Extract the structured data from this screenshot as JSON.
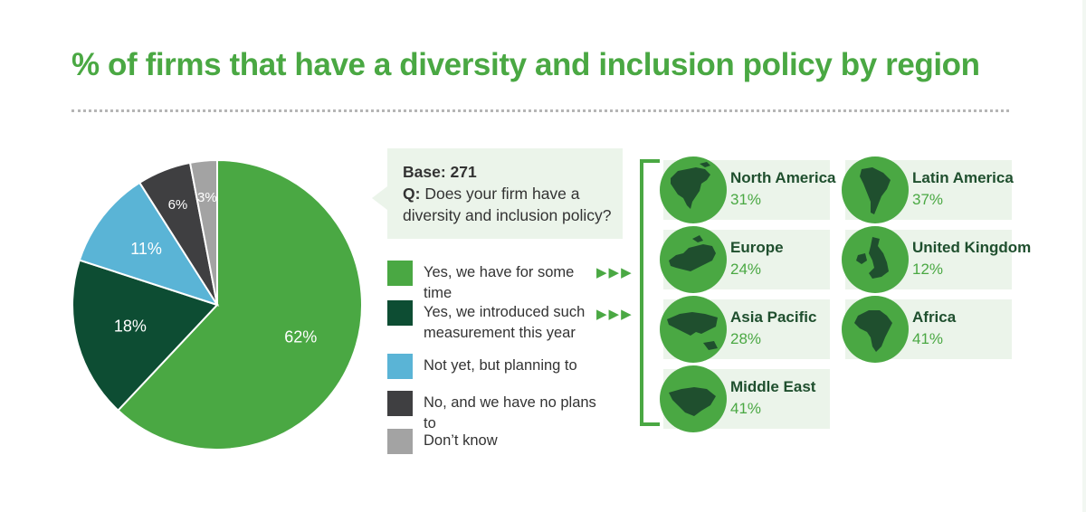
{
  "title": "% of firms that have a diversity and inclusion policy by region",
  "question": {
    "base": "Base: 271",
    "q_prefix": "Q:",
    "q_line1": "Does your firm have a",
    "q_line2": "diversity and inclusion policy?"
  },
  "legend": [
    {
      "label": "Yes, we have for some time",
      "color": "#4aa843"
    },
    {
      "label": "Yes, we introduced such measurement this year",
      "color": "#0d4d33"
    },
    {
      "label": "Not yet, but planning to",
      "color": "#5ab4d6"
    },
    {
      "label": "No, and we have no plans to",
      "color": "#3f3f41"
    },
    {
      "label": "Don’t know",
      "color": "#a3a3a3"
    }
  ],
  "arrow_glyph": "▶▶▶",
  "chart_data": {
    "type": "pie",
    "slices": [
      {
        "name": "Yes, we have for some time",
        "value": 62,
        "label": "62%",
        "color": "#4aa843"
      },
      {
        "name": "Yes, we introduced such measurement this year",
        "value": 18,
        "label": "18%",
        "color": "#0d4d33"
      },
      {
        "name": "Not yet, but planning to",
        "value": 11,
        "label": "11%",
        "color": "#5ab4d6"
      },
      {
        "name": "No, and we have no plans to",
        "value": 6,
        "label": "6%",
        "color": "#3f3f41"
      },
      {
        "name": "Don’t know",
        "value": 3,
        "label": "3%",
        "color": "#a3a3a3"
      }
    ]
  },
  "regions": [
    {
      "name": "North America",
      "value": "31%",
      "icon": "north-america-map-icon"
    },
    {
      "name": "Latin America",
      "value": "37%",
      "icon": "latin-america-map-icon"
    },
    {
      "name": "Europe",
      "value": "24%",
      "icon": "europe-map-icon"
    },
    {
      "name": "United Kingdom",
      "value": "12%",
      "icon": "united-kingdom-map-icon"
    },
    {
      "name": "Asia Pacific",
      "value": "28%",
      "icon": "asia-pacific-map-icon"
    },
    {
      "name": "Africa",
      "value": "41%",
      "icon": "africa-map-icon"
    },
    {
      "name": "Middle East",
      "value": "41%",
      "icon": "middle-east-map-icon"
    }
  ],
  "colors": {
    "accent": "#4aa843",
    "dark_green": "#1f4f2e",
    "panel": "#ebf4ea"
  }
}
